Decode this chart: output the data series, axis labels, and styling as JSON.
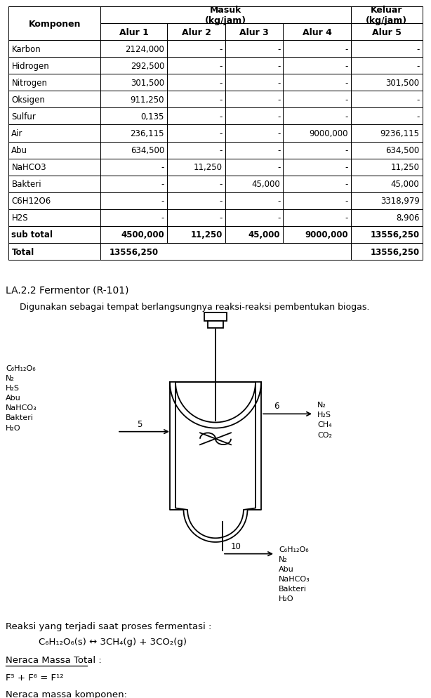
{
  "table_data": [
    [
      "Karbon",
      "2124,000",
      "-",
      "-",
      "-",
      "-"
    ],
    [
      "Hidrogen",
      "292,500",
      "-",
      "-",
      "-",
      "-"
    ],
    [
      "Nitrogen",
      "301,500",
      "-",
      "-",
      "-",
      "301,500"
    ],
    [
      "Oksigen",
      "911,250",
      "-",
      "-",
      "-",
      "-"
    ],
    [
      "Sulfur",
      "0,135",
      "-",
      "-",
      "-",
      "-"
    ],
    [
      "Air",
      "236,115",
      "-",
      "-",
      "9000,000",
      "9236,115"
    ],
    [
      "Abu",
      "634,500",
      "-",
      "-",
      "-",
      "634,500"
    ],
    [
      "NaHCO3",
      "-",
      "11,250",
      "-",
      "-",
      "11,250"
    ],
    [
      "Bakteri",
      "-",
      "-",
      "45,000",
      "-",
      "45,000"
    ],
    [
      "C6H12O6",
      "-",
      "-",
      "-",
      "-",
      "3318,979"
    ],
    [
      "H2S",
      "-",
      "-",
      "-",
      "-",
      "8,906"
    ],
    [
      "sub total",
      "4500,000",
      "11,250",
      "45,000",
      "9000,000",
      "13556,250"
    ],
    [
      "Total",
      "13556,250",
      "",
      "",
      "",
      "13556,250"
    ]
  ],
  "bold_rows": [
    11,
    12
  ],
  "section2_title": "LA.2.2 Fermentor (R-101)",
  "section2_desc": "Digunakan sebagai tempat berlangsungnya reaksi-reaksi pembentukan biogas.",
  "left_label": [
    "C₆H₁₂O₆",
    "N₂",
    "H₂S",
    "Abu",
    "NaHCO₃",
    "Bakteri",
    "H₂O"
  ],
  "right_top_label": [
    "N₂",
    "H₂S",
    "CH₄",
    "CO₂"
  ],
  "right_bot_label": [
    "C₆H₁₂O₆",
    "N₂",
    "Abu",
    "NaHCO₃",
    "Bakteri",
    "H₂O"
  ],
  "reaction_text": "Reaksi yang terjadi saat proses fermentasi :",
  "reaction_eq": "C₆H₁₂O₆(s) ↔ 3CH₄(g) + 3CO₂(g)",
  "neraca_total_title": "Neraca Massa Total :",
  "neraca_total_eq": "F⁵ + F⁶ = F¹²",
  "neraca_komponen": "Neraca massa komponen:",
  "alur5_label": "Alur 5",
  "bg_color": "#ffffff"
}
